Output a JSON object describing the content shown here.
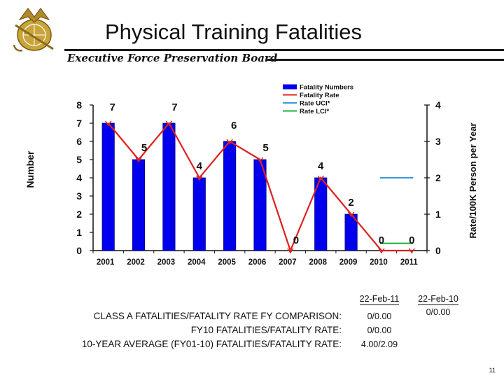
{
  "header": {
    "title": "Physical Training Fatalities",
    "subtitle": "Executive Force Preservation Board"
  },
  "logo": {
    "icon": "eagle-globe-anchor-emblem"
  },
  "chart_data": {
    "type": "bar",
    "categories": [
      "2001",
      "2002",
      "2003",
      "2004",
      "2005",
      "2006",
      "2007",
      "2008",
      "2009",
      "2010",
      "2011"
    ],
    "series": [
      {
        "name": "Fatality Numbers",
        "type": "bar",
        "color": "#0000ee",
        "values": [
          7,
          5,
          7,
          4,
          6,
          5,
          0,
          4,
          2,
          0,
          0
        ],
        "labels": [
          "7",
          "5",
          "7",
          "4",
          "6",
          "5",
          "0",
          "4",
          "2",
          "0",
          "0"
        ]
      },
      {
        "name": "Fatality Rate",
        "type": "line",
        "color": "#e02020",
        "axis": "right",
        "values": [
          3.5,
          2.5,
          3.5,
          2.0,
          3.0,
          2.5,
          0,
          2.0,
          1.0,
          0,
          0
        ]
      },
      {
        "name": "Rate UCI*",
        "type": "segment",
        "color": "#3399dd",
        "axis": "right",
        "x_range": [
          "2010",
          "2011"
        ],
        "value": 2.0
      },
      {
        "name": "Rate LCI*",
        "type": "segment",
        "color": "#22aa44",
        "axis": "right",
        "x_range": [
          "2010",
          "2011"
        ],
        "value": 0.2
      }
    ],
    "ylabel": "Number",
    "ylabel_right": "Rate/100K Person per Year",
    "ylim": [
      0,
      8
    ],
    "ylim_right": [
      0,
      4
    ],
    "yticks": [
      "0",
      "1",
      "2",
      "3",
      "4",
      "5",
      "6",
      "7",
      "8"
    ],
    "yticks_right": [
      "0",
      "1",
      "2",
      "3",
      "4"
    ],
    "legend_position": "top-right",
    "grid": false
  },
  "comparison": {
    "labels": [
      "CLASS A FATALITIES/FATALITY RATE FY COMPARISON:",
      "FY10 FATALITIES/FATALITY RATE:",
      "10-YEAR AVERAGE (FY01-10) FATALITIES/FATALITY RATE:"
    ],
    "col1_header": "22-Feb-11",
    "col1_values": [
      "0/0.00",
      "0/0.00",
      "4.00/2.09"
    ],
    "col2_header": "22-Feb-10",
    "col2_values": [
      "0/0.00"
    ]
  },
  "page_number": "11"
}
